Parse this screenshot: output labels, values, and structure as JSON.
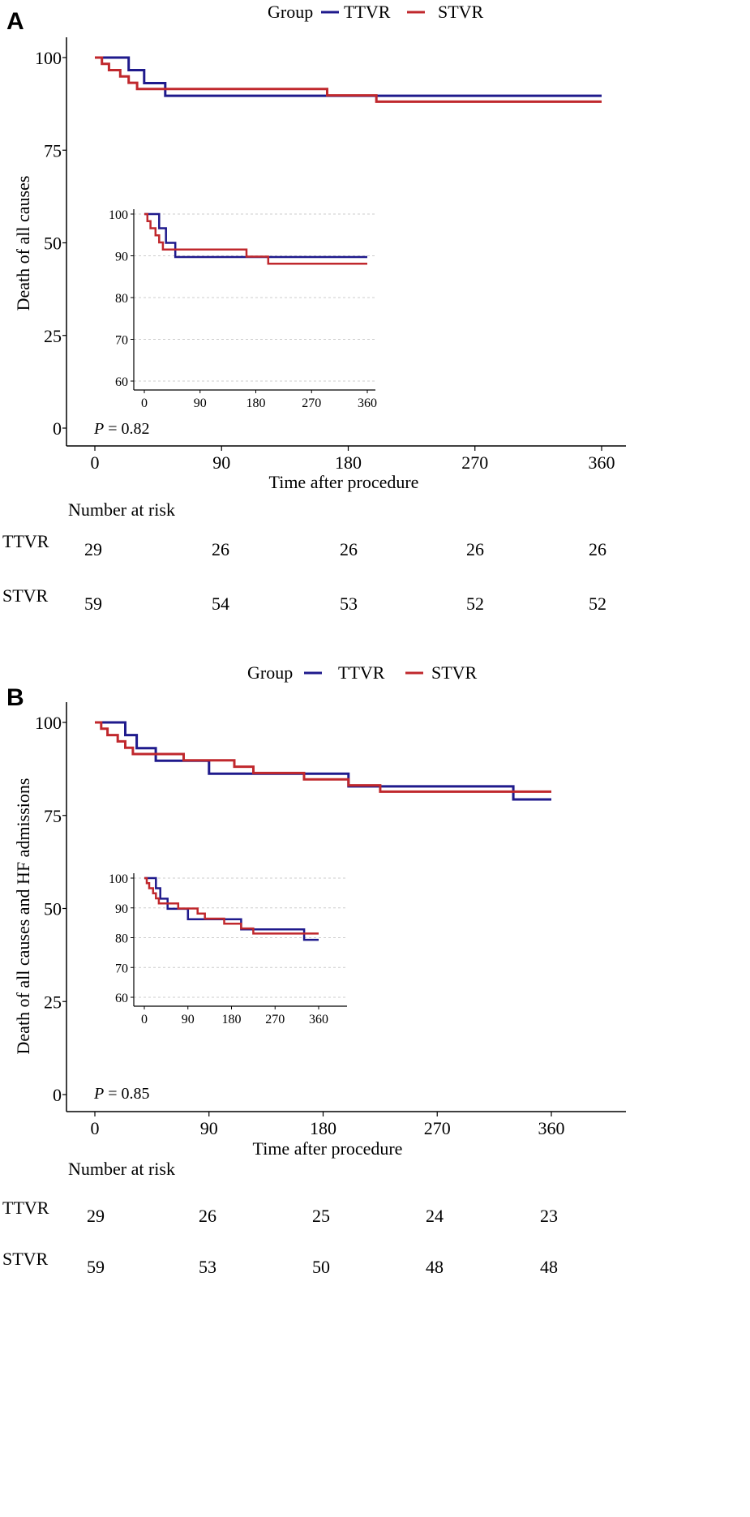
{
  "colors": {
    "TTVR": "#1f1a8c",
    "STVR": "#c0282d",
    "axis": "#000000",
    "grid": "#cccccc"
  },
  "chart_data": [
    {
      "type": "line",
      "panel": "A",
      "legend": {
        "title": "Group",
        "position": "top",
        "entries": [
          "TTVR",
          "STVR"
        ]
      },
      "ylabel": "Death of all causes",
      "xlabel": "Time after procedure",
      "xlim": [
        0,
        360
      ],
      "ylim": [
        0,
        100
      ],
      "xticks": [
        0,
        90,
        180,
        270,
        360
      ],
      "yticks": [
        0,
        25,
        50,
        75,
        100
      ],
      "pvalue": {
        "label": "P",
        "text": "= 0.82"
      },
      "series": [
        {
          "name": "TTVR",
          "x": [
            0,
            24,
            24,
            35,
            35,
            50,
            50,
            360
          ],
          "y": [
            100,
            100,
            96.6,
            96.6,
            93.1,
            93.1,
            89.7,
            89.7
          ]
        },
        {
          "name": "STVR",
          "x": [
            0,
            5,
            5,
            10,
            10,
            18,
            18,
            24,
            24,
            30,
            30,
            165,
            165,
            200,
            200,
            360
          ],
          "y": [
            100,
            100,
            98.3,
            98.3,
            96.6,
            96.6,
            94.9,
            94.9,
            93.2,
            93.2,
            91.5,
            91.5,
            89.8,
            89.8,
            88.1,
            88.1
          ]
        }
      ],
      "inset": {
        "xticks": [
          0,
          90,
          180,
          270,
          360
        ],
        "yticks": [
          60,
          70,
          80,
          90,
          100
        ],
        "xlim": [
          0,
          360
        ],
        "ylim": [
          60,
          100
        ],
        "grid": true
      },
      "risk_table": {
        "title": "Number at risk",
        "times": [
          0,
          90,
          180,
          270,
          360
        ],
        "rows": [
          {
            "name": "TTVR",
            "values": [
              "29",
              "26",
              "26",
              "26",
              "26"
            ]
          },
          {
            "name": "STVR",
            "values": [
              "59",
              "54",
              "53",
              "52",
              "52"
            ]
          }
        ]
      }
    },
    {
      "type": "line",
      "panel": "B",
      "legend": {
        "title": "Group",
        "position": "top",
        "entries": [
          "TTVR",
          "STVR"
        ]
      },
      "ylabel": "Death of all causes and HF admissions",
      "xlabel": "Time  after procedure",
      "xlim": [
        0,
        360
      ],
      "ylim": [
        0,
        100
      ],
      "xticks": [
        0,
        90,
        180,
        270,
        360
      ],
      "yticks": [
        0,
        25,
        50,
        75,
        100
      ],
      "pvalue": {
        "label": "P",
        "text": "= 0.85"
      },
      "series": [
        {
          "name": "TTVR",
          "x": [
            0,
            24,
            24,
            33,
            33,
            48,
            48,
            90,
            90,
            200,
            200,
            330,
            330,
            360
          ],
          "y": [
            100,
            100,
            96.6,
            96.6,
            93.1,
            93.1,
            89.7,
            89.7,
            86.2,
            86.2,
            82.8,
            82.8,
            79.3,
            79.3
          ]
        },
        {
          "name": "STVR",
          "x": [
            0,
            5,
            5,
            10,
            10,
            18,
            18,
            24,
            24,
            30,
            30,
            70,
            70,
            110,
            110,
            125,
            125,
            165,
            165,
            200,
            200,
            225,
            225,
            360
          ],
          "y": [
            100,
            100,
            98.3,
            98.3,
            96.6,
            96.6,
            94.9,
            94.9,
            93.2,
            93.2,
            91.5,
            91.5,
            89.8,
            89.8,
            88.1,
            88.1,
            86.4,
            86.4,
            84.7,
            84.7,
            83.1,
            83.1,
            81.4,
            81.4
          ]
        }
      ],
      "inset": {
        "xticks": [
          0,
          90,
          180,
          270,
          360
        ],
        "yticks": [
          60,
          70,
          80,
          90,
          100
        ],
        "xlim": [
          0,
          360
        ],
        "ylim": [
          60,
          100
        ],
        "grid": true
      },
      "risk_table": {
        "title": "Number at risk",
        "times": [
          0,
          90,
          180,
          270,
          360
        ],
        "rows": [
          {
            "name": "TTVR",
            "values": [
              "29",
              "26",
              "25",
              "24",
              "23"
            ]
          },
          {
            "name": "STVR",
            "values": [
              "59",
              "53",
              "50",
              "48",
              "48"
            ]
          }
        ]
      }
    }
  ]
}
